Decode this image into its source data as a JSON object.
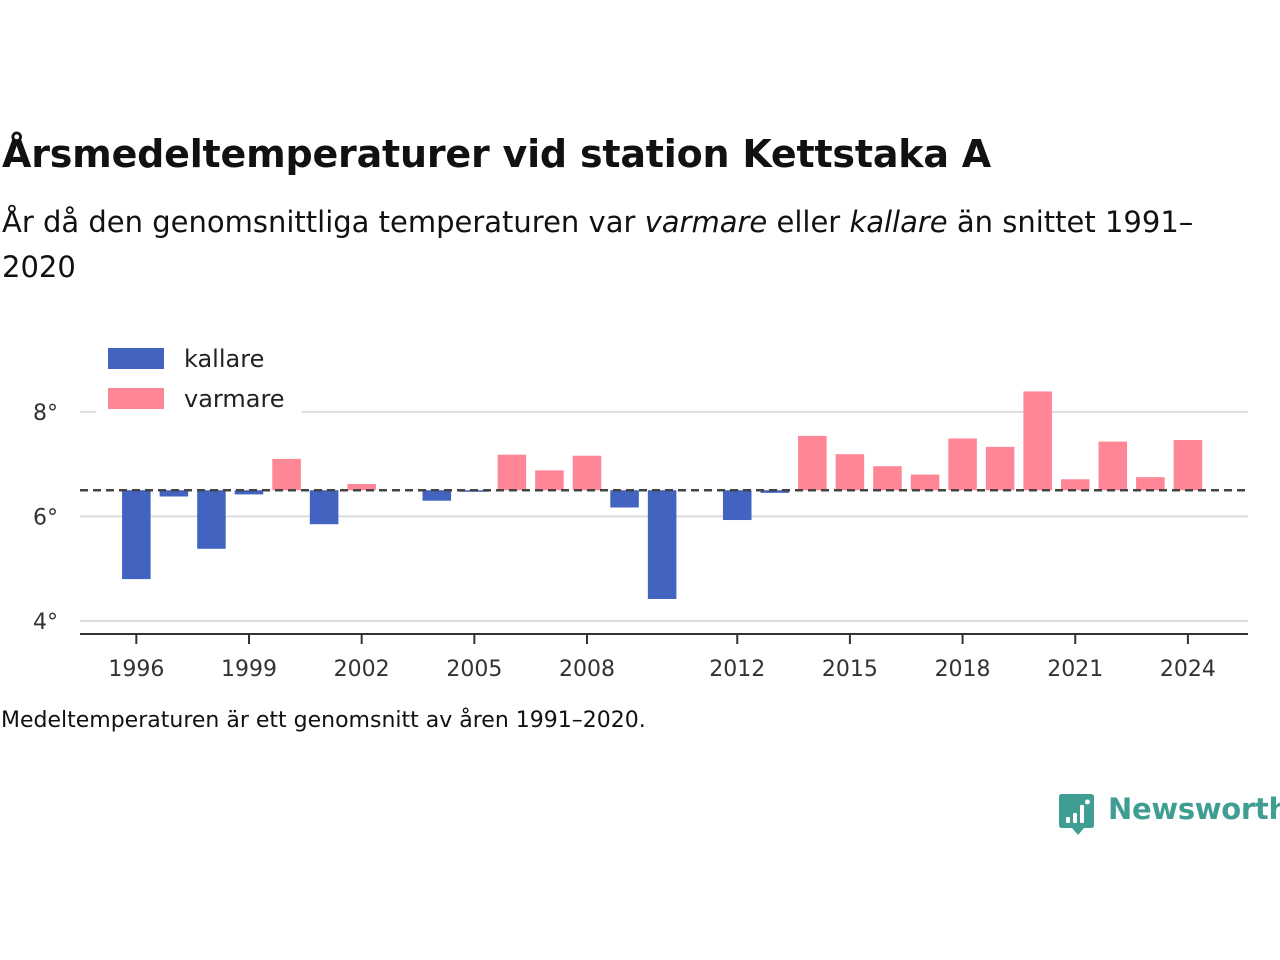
{
  "title": "Årsmedeltemperaturer vid station Kettstaka A",
  "subtitle": {
    "part1": "År då den genomsnittliga temperaturen var ",
    "warm_word": "varmare",
    "part2": " eller ",
    "cold_word": "kallare",
    "part3": " än snittet 1991–2020"
  },
  "note": "Medeltemperaturen är ett genomsnitt av åren 1991–2020.",
  "brand": {
    "name": "Newsworthy",
    "icon": "newsworthy-logo-icon",
    "color": "#3f9d92"
  },
  "chart_data": {
    "type": "bar",
    "baseline": 6.5,
    "ylim": [
      3.75,
      8.8
    ],
    "xlim": [
      1994.5,
      2025.6
    ],
    "yticks": [
      {
        "value": 4,
        "label": "4°"
      },
      {
        "value": 6,
        "label": "6°"
      },
      {
        "value": 8,
        "label": "8°"
      }
    ],
    "xticks": [
      1996,
      1999,
      2002,
      2005,
      2008,
      2012,
      2015,
      2018,
      2021,
      2024
    ],
    "grid": true,
    "legend_placement": "top-left",
    "legend": [
      {
        "label": "kallare",
        "color": "#4264c0"
      },
      {
        "label": "varmare",
        "color": "#ff8696"
      }
    ],
    "colors": {
      "cold": "#4264c0",
      "warm": "#ff8696"
    },
    "bars": [
      {
        "year": 1996,
        "value": 4.8
      },
      {
        "year": 1997,
        "value": 6.38
      },
      {
        "year": 1998,
        "value": 5.38
      },
      {
        "year": 1999,
        "value": 6.42
      },
      {
        "year": 2000,
        "value": 7.1
      },
      {
        "year": 2001,
        "value": 5.85
      },
      {
        "year": 2002,
        "value": 6.62
      },
      {
        "year": 2004,
        "value": 6.3
      },
      {
        "year": 2005,
        "value": 6.47
      },
      {
        "year": 2006,
        "value": 7.18
      },
      {
        "year": 2007,
        "value": 6.88
      },
      {
        "year": 2008,
        "value": 7.16
      },
      {
        "year": 2009,
        "value": 6.17
      },
      {
        "year": 2010,
        "value": 4.42
      },
      {
        "year": 2012,
        "value": 5.93
      },
      {
        "year": 2013,
        "value": 6.45
      },
      {
        "year": 2014,
        "value": 7.54
      },
      {
        "year": 2015,
        "value": 7.19
      },
      {
        "year": 2016,
        "value": 6.96
      },
      {
        "year": 2017,
        "value": 6.8
      },
      {
        "year": 2018,
        "value": 7.49
      },
      {
        "year": 2019,
        "value": 7.33
      },
      {
        "year": 2020,
        "value": 8.39
      },
      {
        "year": 2021,
        "value": 6.71
      },
      {
        "year": 2022,
        "value": 7.43
      },
      {
        "year": 2023,
        "value": 6.75
      },
      {
        "year": 2024,
        "value": 7.46
      }
    ]
  }
}
